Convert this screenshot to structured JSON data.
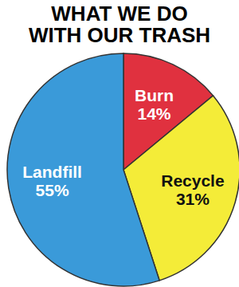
{
  "chart_data": {
    "type": "pie",
    "title": "WHAT WE DO WITH OUR TRASH",
    "categories": [
      "Burn",
      "Recycle",
      "Landfill"
    ],
    "values": [
      14,
      31,
      55
    ],
    "value_labels": [
      "14%",
      "31%",
      "55%"
    ],
    "colors": [
      "#e0313f",
      "#f4ec38",
      "#3a9ad9"
    ],
    "data_labels": true
  }
}
